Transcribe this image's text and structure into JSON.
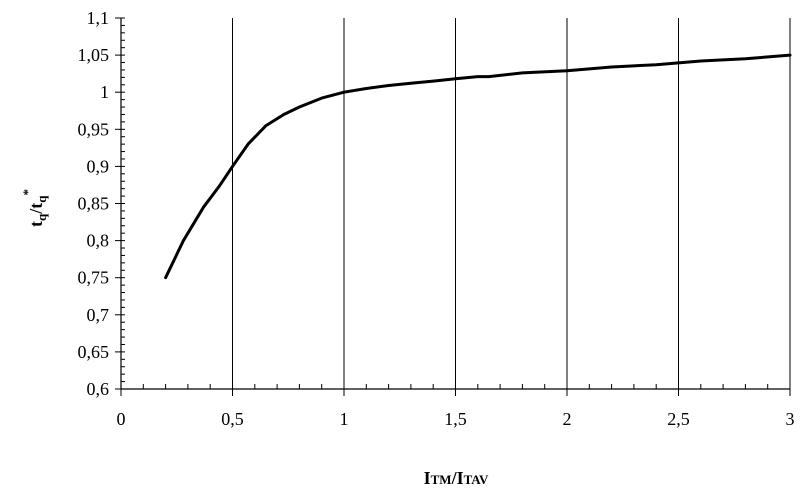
{
  "chart_data": {
    "type": "line",
    "title": "",
    "xlabel": {
      "main": "I",
      "sub1": "TM",
      "slash": "/I",
      "sub2": "TAV"
    },
    "ylabel": {
      "t1": "t",
      "s1": "q",
      "slash": "/t",
      "s2": "q",
      "sup": "*"
    },
    "xlim": [
      0,
      3
    ],
    "ylim": [
      0.6,
      1.1
    ],
    "grid": {
      "x": true,
      "y": false
    },
    "legend": "none",
    "xticks": [
      {
        "v": 0,
        "label": "0"
      },
      {
        "v": 0.5,
        "label": "0,5"
      },
      {
        "v": 1,
        "label": "1"
      },
      {
        "v": 1.5,
        "label": "1,5"
      },
      {
        "v": 2,
        "label": "2"
      },
      {
        "v": 2.5,
        "label": "2,5"
      },
      {
        "v": 3,
        "label": "3"
      }
    ],
    "yticks": [
      {
        "v": 0.6,
        "label": "0,6"
      },
      {
        "v": 0.65,
        "label": "0,65"
      },
      {
        "v": 0.7,
        "label": "0,7"
      },
      {
        "v": 0.75,
        "label": "0,75"
      },
      {
        "v": 0.8,
        "label": "0,8"
      },
      {
        "v": 0.85,
        "label": "0,85"
      },
      {
        "v": 0.9,
        "label": "0,9"
      },
      {
        "v": 0.95,
        "label": "0,95"
      },
      {
        "v": 1,
        "label": "1"
      },
      {
        "v": 1.05,
        "label": "1,05"
      },
      {
        "v": 1.1,
        "label": "1,1"
      }
    ],
    "x_minor_step": 0.1,
    "y_minor_step": 0.01,
    "series": [
      {
        "color": "#000000",
        "x": [
          0.2,
          0.28,
          0.37,
          0.44,
          0.5,
          0.57,
          0.65,
          0.73,
          0.8,
          0.9,
          1.0,
          1.1,
          1.2,
          1.3,
          1.4,
          1.5,
          1.6,
          1.65,
          1.8,
          2.0,
          2.2,
          2.4,
          2.6,
          2.8,
          3.0
        ],
        "y": [
          0.75,
          0.8,
          0.845,
          0.873,
          0.9,
          0.93,
          0.955,
          0.97,
          0.98,
          0.992,
          1.0,
          1.005,
          1.009,
          1.012,
          1.015,
          1.018,
          1.021,
          1.021,
          1.026,
          1.029,
          1.034,
          1.037,
          1.042,
          1.045,
          1.05
        ]
      }
    ]
  }
}
